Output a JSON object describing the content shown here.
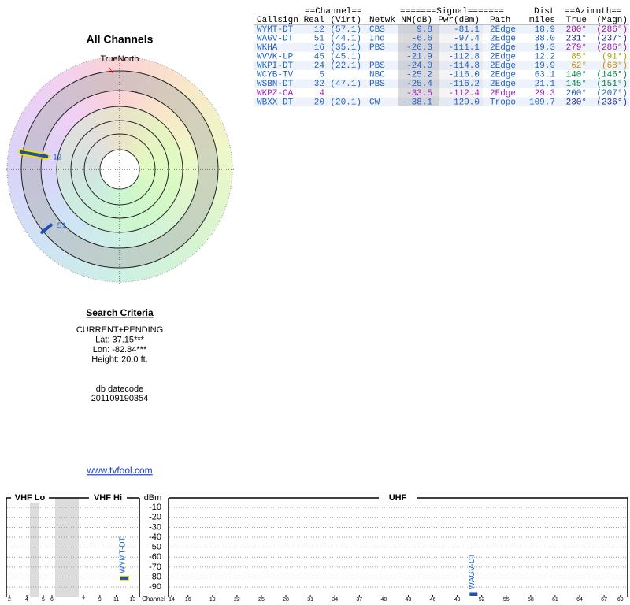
{
  "table": {
    "group_headers": [
      "==Channel==",
      "=======Signal=======",
      "Dist",
      "==Azimuth=="
    ],
    "headers": [
      "Callsign",
      "Real",
      "(Virt)",
      "Netwk",
      "NM(dB)",
      "Pwr(dBm)",
      "Path",
      "miles",
      "True",
      "(Magn)"
    ],
    "rows": [
      [
        "WYMT-DT",
        "12",
        "(57.1)",
        "CBS",
        "9.8",
        "-81.1",
        "2Edge",
        "18.9",
        "280°",
        "(286°)"
      ],
      [
        "WAGV-DT",
        "51",
        "(44.1)",
        "Ind",
        "-6.6",
        "-97.4",
        "2Edge",
        "38.0",
        "231°",
        "(237°)"
      ],
      [
        "WKHA",
        "16",
        "(35.1)",
        "PBS",
        "-20.3",
        "-111.1",
        "2Edge",
        "19.3",
        "279°",
        "(286°)"
      ],
      [
        "WVVK-LP",
        "45",
        "(45.1)",
        null,
        "-21.9",
        "-112.8",
        "2Edge",
        "12.2",
        "85°",
        "(91°)"
      ],
      [
        "WKPI-DT",
        "24",
        "(22.1)",
        "PBS",
        "-24.0",
        "-114.8",
        "2Edge",
        "19.9",
        "62°",
        "(68°)"
      ],
      [
        "WCYB-TV",
        "5",
        null,
        "NBC",
        "-25.2",
        "-116.0",
        "2Edge",
        "63.1",
        "140°",
        "(146°)"
      ],
      [
        "WSBN-DT",
        "32",
        "(47.1)",
        "PBS",
        "-25.4",
        "-116.2",
        "2Edge",
        "21.1",
        "145°",
        "(151°)"
      ],
      [
        "WKPZ-CA",
        "4",
        null,
        null,
        "-33.5",
        "-112.4",
        "2Edge",
        "29.3",
        "200°",
        "(207°)"
      ],
      [
        "WBXX-DT",
        "20",
        "(20.1)",
        "CW",
        "-38.1",
        "-129.0",
        "Tropo",
        "109.7",
        "230°",
        "(236°)"
      ]
    ],
    "row_colors": [
      "#1f5fc4",
      "#1f5fc4",
      "#1f5fc4",
      "#1f5fc4",
      "#1f5fc4",
      "#1f5fc4",
      "#1f5fc4",
      "#a020c0",
      "#1f5fc4"
    ],
    "azimuth_colors": [
      "#a0109a",
      "#1c1c9a",
      "#a818a8",
      "#a8a000",
      "#c09000",
      "#00804a",
      "#00804a",
      "#1f5fc4",
      "#1c2a9a"
    ]
  },
  "radar": {
    "title": "All Channels",
    "north_label": "TrueNorth",
    "n_label": "N",
    "stations": [
      {
        "label": "12",
        "azimuth": 280,
        "nm": 9.8
      },
      {
        "label": "51",
        "azimuth": 231,
        "nm": -6.6
      }
    ]
  },
  "criteria": {
    "title": "Search Criteria",
    "lines": [
      "CURRENT+PENDING",
      "Lat: 37.15***",
      "Lon: -82.84***",
      "Height: 20.0 ft."
    ],
    "datecode_label": "db datecode",
    "datecode": "201109190354"
  },
  "link": "www.tvfool.com",
  "spectrum": {
    "panels": [
      "VHF Lo",
      "VHF Hi",
      "UHF"
    ],
    "y_label": "dBm",
    "x_label": "Channel",
    "ylim": [
      -100,
      0
    ],
    "yticks": [
      -10,
      -20,
      -30,
      -40,
      -50,
      -60,
      -70,
      -80,
      -90
    ],
    "vhf_xticks": [
      2,
      4,
      5,
      6,
      7,
      9,
      11,
      13
    ],
    "uhf_xticks": [
      14,
      16,
      19,
      22,
      25,
      28,
      31,
      34,
      37,
      40,
      43,
      46,
      49,
      52,
      55,
      58,
      61,
      64,
      67,
      69
    ],
    "stations": [
      {
        "label": "WYMT-DT",
        "channel": 12,
        "power": -81.1
      },
      {
        "label": "WAGV-DT",
        "channel": 51,
        "power": -97.4
      }
    ]
  }
}
